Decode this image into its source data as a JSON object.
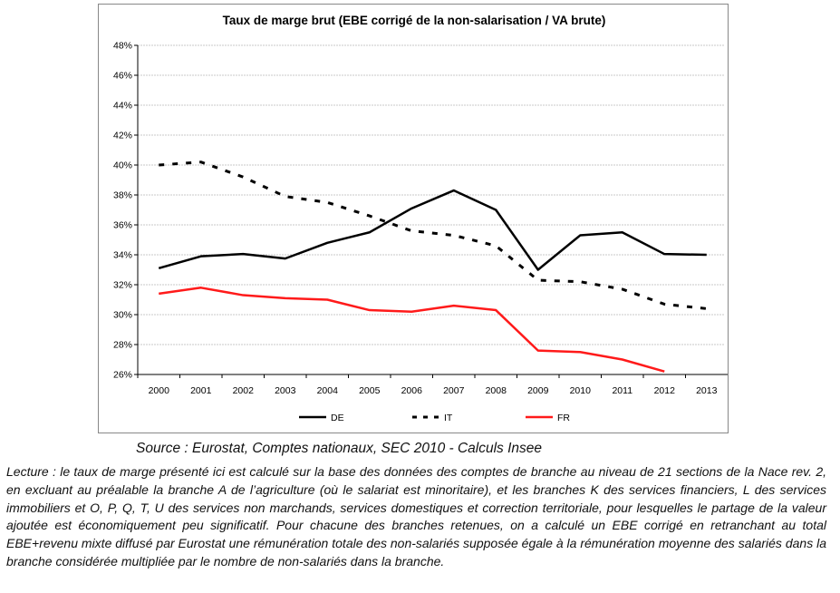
{
  "chart_data": {
    "type": "line",
    "title": "Taux de marge brut (EBE corrigé de la non-salarisation / VA brute)",
    "xlabel": "",
    "ylabel": "",
    "categories": [
      "2000",
      "2001",
      "2002",
      "2003",
      "2004",
      "2005",
      "2006",
      "2007",
      "2008",
      "2009",
      "2010",
      "2011",
      "2012",
      "2013"
    ],
    "ylim": [
      26,
      48
    ],
    "yticks": [
      "26%",
      "28%",
      "30%",
      "32%",
      "34%",
      "36%",
      "38%",
      "40%",
      "42%",
      "44%",
      "46%",
      "48%"
    ],
    "grid": true,
    "legend_position": "bottom",
    "series": [
      {
        "name": "DE",
        "color": "#000000",
        "style": "solid",
        "values": [
          33.1,
          33.9,
          34.05,
          33.75,
          34.8,
          35.5,
          37.1,
          38.3,
          37.0,
          33.0,
          35.3,
          35.5,
          34.05,
          34.0
        ]
      },
      {
        "name": "IT",
        "color": "#000000",
        "style": "dashed",
        "values": [
          40.0,
          40.2,
          39.2,
          37.9,
          37.5,
          36.6,
          35.6,
          35.3,
          34.6,
          32.3,
          32.2,
          31.7,
          30.7,
          30.4
        ]
      },
      {
        "name": "FR",
        "color": "#ff1a1a",
        "style": "solid",
        "values": [
          31.4,
          31.8,
          31.3,
          31.1,
          31.0,
          30.3,
          30.2,
          30.6,
          30.3,
          27.6,
          27.5,
          27.0,
          26.2,
          null
        ]
      }
    ]
  },
  "source": "Source : Eurostat, Comptes nationaux, SEC 2010 - Calculs Insee",
  "note": "Lecture : le taux de marge présenté ici est calculé sur la base des données des comptes de branche au niveau de 21 sections de la Nace rev. 2, en excluant au préalable la branche A de l’agriculture (où le salariat est minoritaire), et les branches K des services financiers, L des services immobiliers et O, P, Q, T, U des services non marchands, services domestiques et correction territoriale, pour lesquelles le partage de la valeur ajoutée est économiquement peu significatif. Pour chacune des branches retenues, on a calculé un EBE corrigé en retranchant au total EBE+revenu mixte diffusé par Eurostat une rémunération totale des non-salariés supposée égale à la rémunération moyenne des salariés dans la branche considérée multipliée par le nombre de non-salariés dans la branche."
}
